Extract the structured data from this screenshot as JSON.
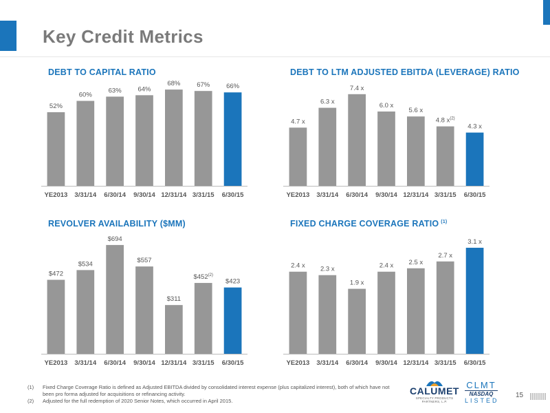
{
  "title": "Key Credit Metrics",
  "chart_data": [
    {
      "id": "debt-to-capital",
      "type": "bar",
      "title": "DEBT TO CAPITAL RATIO",
      "categories": [
        "YE2013",
        "3/31/14",
        "6/30/14",
        "9/30/14",
        "12/31/14",
        "3/31/15",
        "6/30/15"
      ],
      "values": [
        52,
        60,
        63,
        64,
        68,
        67,
        66
      ],
      "labels": [
        "52%",
        "60%",
        "63%",
        "64%",
        "68%",
        "67%",
        "66%"
      ],
      "notes": [
        "",
        "",
        "",
        "",
        "",
        "",
        ""
      ],
      "ylim": [
        0,
        70
      ],
      "colors": [
        "#979797",
        "#979797",
        "#979797",
        "#979797",
        "#979797",
        "#979797",
        "#1b75bb"
      ]
    },
    {
      "id": "leverage",
      "type": "bar",
      "title": "DEBT TO LTM ADJUSTED EBITDA (LEVERAGE) RATIO",
      "categories": [
        "YE2013",
        "3/31/14",
        "6/30/14",
        "9/30/14",
        "12/31/14",
        "3/31/15",
        "6/30/15"
      ],
      "values": [
        4.7,
        6.3,
        7.4,
        6.0,
        5.6,
        4.8,
        4.3
      ],
      "labels": [
        "4.7 x",
        "6.3 x",
        "7.4 x",
        "6.0 x",
        "5.6 x",
        "4.8 x",
        "4.3 x"
      ],
      "notes": [
        "",
        "",
        "",
        "",
        "",
        "(2)",
        ""
      ],
      "ylim": [
        0,
        8
      ],
      "colors": [
        "#979797",
        "#979797",
        "#979797",
        "#979797",
        "#979797",
        "#979797",
        "#1b75bb"
      ]
    },
    {
      "id": "revolver",
      "type": "bar",
      "title": "REVOLVER AVAILABILITY ($MM)",
      "categories": [
        "YE2013",
        "3/31/14",
        "6/30/14",
        "9/30/14",
        "12/31/14",
        "3/31/15",
        "6/30/15"
      ],
      "values": [
        472,
        534,
        694,
        557,
        311,
        452,
        423
      ],
      "labels": [
        "$472",
        "$534",
        "$694",
        "$557",
        "$311",
        "$452",
        "$423"
      ],
      "notes": [
        "",
        "",
        "",
        "",
        "",
        "(2)",
        ""
      ],
      "ylim": [
        0,
        720
      ],
      "colors": [
        "#979797",
        "#979797",
        "#979797",
        "#979797",
        "#979797",
        "#979797",
        "#1b75bb"
      ]
    },
    {
      "id": "fixed-charge",
      "type": "bar",
      "title": "FIXED CHARGE COVERAGE RATIO",
      "title_note": "(1)",
      "categories": [
        "YE2013",
        "3/31/14",
        "6/30/14",
        "9/30/14",
        "12/31/14",
        "3/31/15",
        "6/30/15"
      ],
      "values": [
        2.4,
        2.3,
        1.9,
        2.4,
        2.5,
        2.7,
        3.1
      ],
      "labels": [
        "2.4 x",
        "2.3 x",
        "1.9 x",
        "2.4 x",
        "2.5 x",
        "2.7 x",
        "3.1 x"
      ],
      "notes": [
        "",
        "",
        "",
        "",
        "",
        "",
        ""
      ],
      "ylim": [
        0,
        3.3
      ],
      "colors": [
        "#979797",
        "#979797",
        "#979797",
        "#979797",
        "#979797",
        "#979797",
        "#1b75bb"
      ]
    }
  ],
  "footnotes": [
    {
      "num": "(1)",
      "text": "Fixed Charge Coverage Ratio is defined as Adjusted EBITDA divided by consolidated interest expense (plus capitalized interest), both of which have not been pro forma adjusted for acquisitions or refinancing activity."
    },
    {
      "num": "(2)",
      "text": "Adjusted for the full redemption of 2020 Senior Notes, which occurred in April 2015."
    }
  ],
  "logo": {
    "name": "CALUMET",
    "tagline": "SPECIALTY PRODUCTS PARTNERS, L.P."
  },
  "exchange": {
    "ticker": "CLMT",
    "name": "NASDAQ",
    "listed": "LISTED"
  },
  "page_number": "15"
}
